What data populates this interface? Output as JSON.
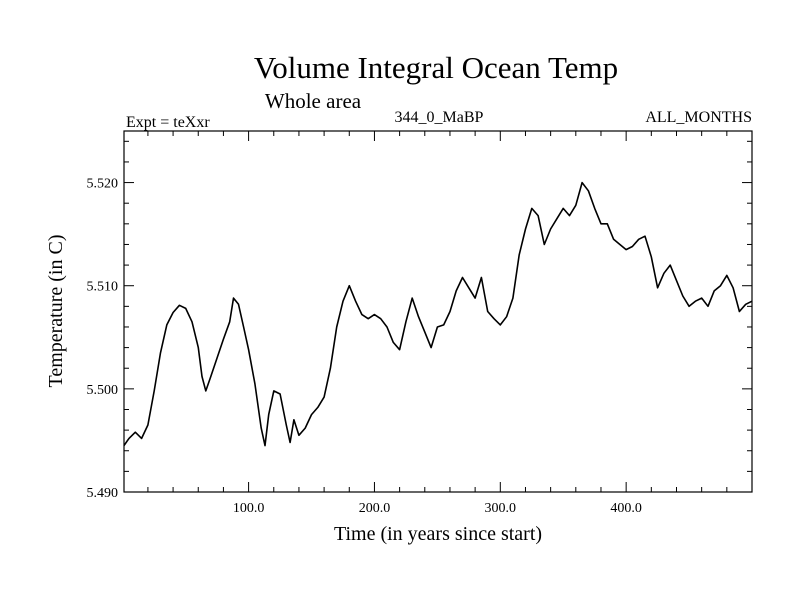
{
  "chart_data": {
    "type": "line",
    "title": "Volume Integral Ocean Temp",
    "subtitle": "Whole area",
    "left_label": "Expt = teXxr",
    "center_label": "344_0_MaBP",
    "right_label": "ALL_MONTHS",
    "xlabel": "Time (in years since start)",
    "ylabel": "Temperature (in C)",
    "xlim": [
      1,
      500
    ],
    "ylim": [
      5.49,
      5.525
    ],
    "x_ticks": [
      100,
      200,
      300,
      400
    ],
    "x_tick_labels": [
      "100.0",
      "200.0",
      "300.0",
      "400.0"
    ],
    "y_ticks": [
      5.49,
      5.5,
      5.51,
      5.52
    ],
    "y_tick_labels": [
      "5.490",
      "5.500",
      "5.510",
      "5.520"
    ],
    "series": [
      {
        "name": "Volume Integral Ocean Temp",
        "x": [
          1,
          5,
          10,
          15,
          20,
          25,
          30,
          35,
          40,
          45,
          50,
          55,
          60,
          63,
          66,
          70,
          75,
          80,
          85,
          88,
          92,
          96,
          100,
          105,
          110,
          113,
          116,
          120,
          125,
          130,
          133,
          136,
          140,
          145,
          150,
          155,
          160,
          165,
          170,
          175,
          180,
          185,
          190,
          195,
          200,
          205,
          210,
          215,
          220,
          225,
          230,
          235,
          240,
          245,
          250,
          255,
          260,
          265,
          270,
          275,
          280,
          285,
          290,
          295,
          300,
          305,
          310,
          315,
          320,
          325,
          330,
          335,
          340,
          345,
          350,
          355,
          360,
          365,
          370,
          375,
          380,
          385,
          390,
          395,
          400,
          405,
          410,
          415,
          420,
          425,
          430,
          435,
          440,
          445,
          450,
          455,
          460,
          465,
          470,
          475,
          480,
          485,
          490,
          495,
          500
        ],
        "y": [
          5.4945,
          5.4952,
          5.4958,
          5.4952,
          5.4965,
          5.4998,
          5.5035,
          5.5062,
          5.5074,
          5.5081,
          5.5078,
          5.5065,
          5.504,
          5.5012,
          5.4998,
          5.5012,
          5.503,
          5.5048,
          5.5065,
          5.5088,
          5.5082,
          5.506,
          5.5038,
          5.5005,
          5.4962,
          5.4945,
          5.4975,
          5.4998,
          5.4995,
          5.4965,
          5.4948,
          5.497,
          5.4955,
          5.4962,
          5.4975,
          5.4982,
          5.4992,
          5.502,
          5.506,
          5.5085,
          5.51,
          5.5085,
          5.5072,
          5.5068,
          5.5072,
          5.5068,
          5.506,
          5.5045,
          5.5038,
          5.5065,
          5.5088,
          5.507,
          5.5055,
          5.504,
          5.506,
          5.5062,
          5.5075,
          5.5095,
          5.5108,
          5.5098,
          5.5088,
          5.5108,
          5.5075,
          5.5068,
          5.5062,
          5.507,
          5.5088,
          5.513,
          5.5155,
          5.5175,
          5.5168,
          5.514,
          5.5155,
          5.5165,
          5.5175,
          5.5168,
          5.5178,
          5.52,
          5.5192,
          5.5175,
          5.516,
          5.516,
          5.5145,
          5.514,
          5.5135,
          5.5138,
          5.5145,
          5.5148,
          5.5128,
          5.5098,
          5.5112,
          5.512,
          5.5105,
          5.509,
          5.508,
          5.5085,
          5.5088,
          5.508,
          5.5095,
          5.51,
          5.511,
          5.5098,
          5.5075,
          5.5082,
          5.5085
        ]
      }
    ]
  }
}
